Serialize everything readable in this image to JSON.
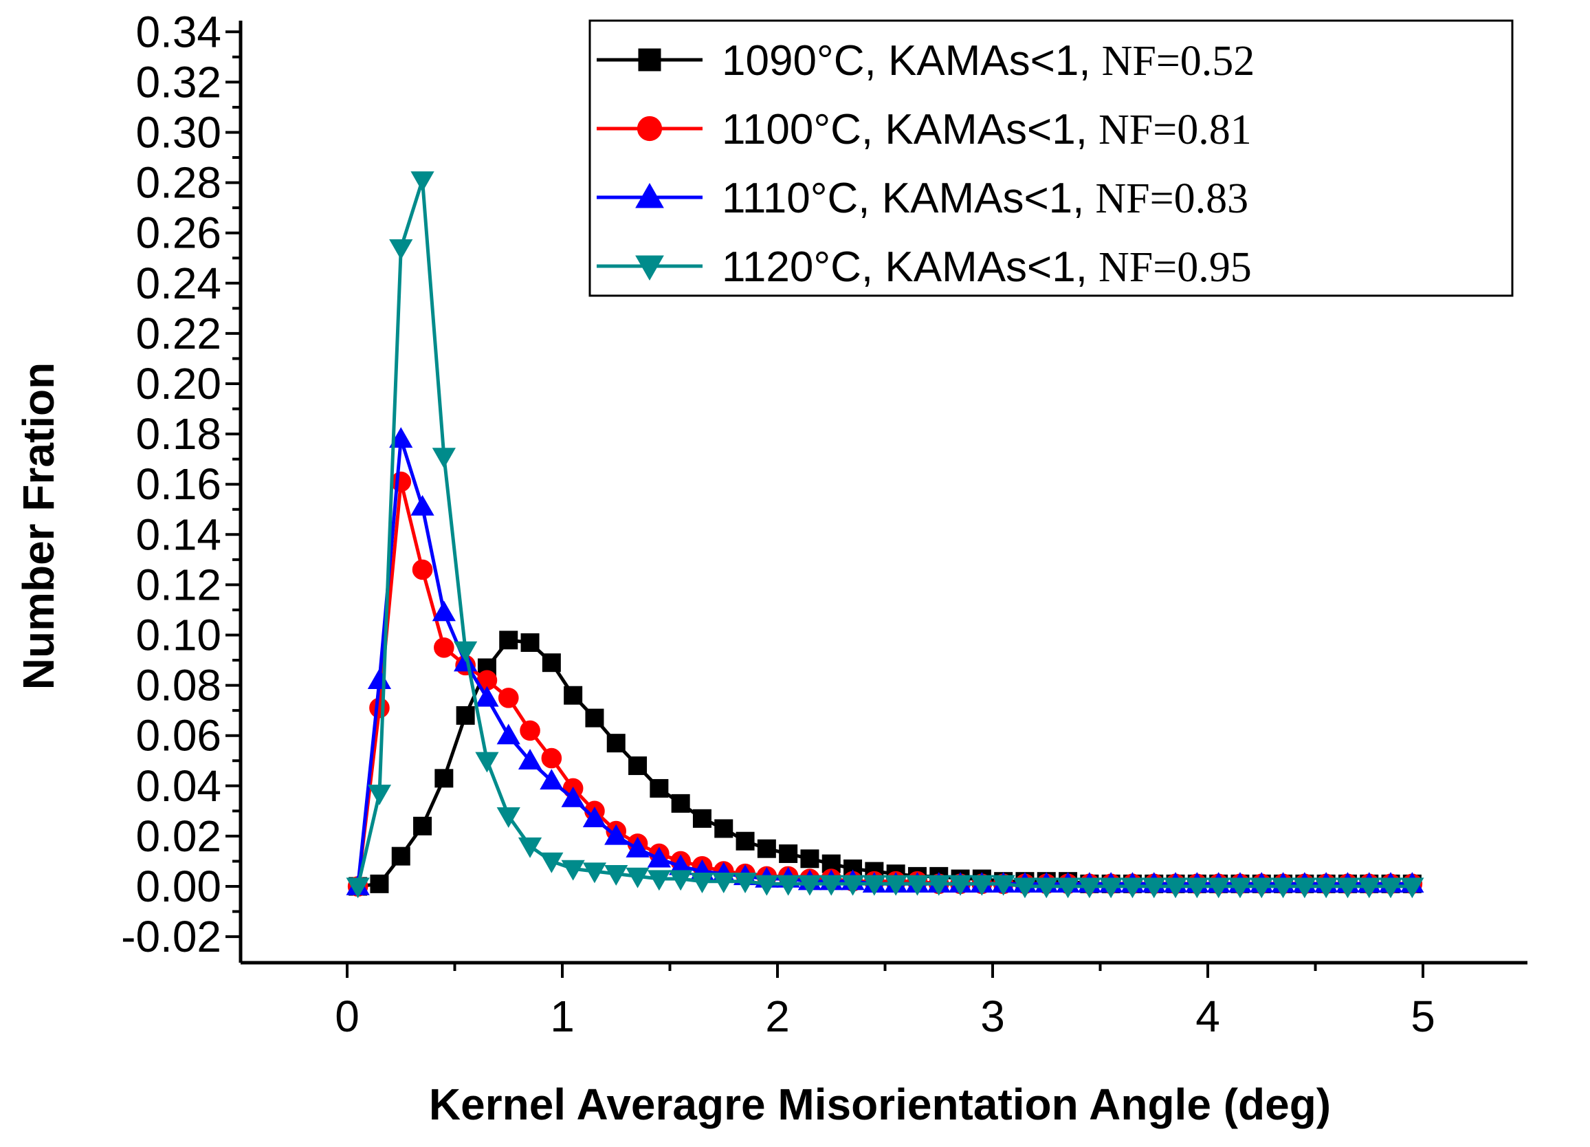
{
  "chart_data": {
    "type": "line",
    "xlabel": "Kernel Averagre Misorientation Angle (deg)",
    "ylabel": "Number Fration",
    "xlim": [
      -0.5,
      5.5
    ],
    "ylim": [
      -0.03,
      0.35
    ],
    "x_ticks": [
      0,
      1,
      2,
      3,
      4,
      5
    ],
    "x_tick_labels": [
      "0",
      "1",
      "2",
      "3",
      "4",
      "5"
    ],
    "y_ticks": [
      -0.02,
      0.0,
      0.02,
      0.04,
      0.06,
      0.08,
      0.1,
      0.12,
      0.14,
      0.16,
      0.18,
      0.2,
      0.22,
      0.24,
      0.26,
      0.28,
      0.3,
      0.32,
      0.34
    ],
    "y_tick_labels": [
      "-0.02",
      "0.00",
      "0.02",
      "0.04",
      "0.06",
      "0.08",
      "0.10",
      "0.12",
      "0.14",
      "0.16",
      "0.18",
      "0.20",
      "0.22",
      "0.24",
      "0.26",
      "0.28",
      "0.30",
      "0.32",
      "0.34"
    ],
    "grid": false,
    "legend_position": "top-right",
    "x": [
      0.05,
      0.15,
      0.25,
      0.35,
      0.45,
      0.55,
      0.65,
      0.75,
      0.85,
      0.95,
      1.05,
      1.15,
      1.25,
      1.35,
      1.45,
      1.55,
      1.65,
      1.75,
      1.85,
      1.95,
      2.05,
      2.15,
      2.25,
      2.35,
      2.45,
      2.55,
      2.65,
      2.75,
      2.85,
      2.95,
      3.05,
      3.15,
      3.25,
      3.35,
      3.45,
      3.55,
      3.65,
      3.75,
      3.85,
      3.95,
      4.05,
      4.15,
      4.25,
      4.35,
      4.45,
      4.55,
      4.65,
      4.75,
      4.85,
      4.95
    ],
    "series": [
      {
        "name_main": "1090°C, KAMAs<1,",
        "name_nf": "NF=0.52",
        "color": "#000000",
        "marker": "square",
        "values": [
          0.0,
          0.001,
          0.012,
          0.024,
          0.043,
          0.068,
          0.087,
          0.098,
          0.097,
          0.089,
          0.076,
          0.067,
          0.057,
          0.048,
          0.039,
          0.033,
          0.027,
          0.023,
          0.018,
          0.015,
          0.013,
          0.011,
          0.009,
          0.007,
          0.006,
          0.005,
          0.004,
          0.004,
          0.003,
          0.003,
          0.002,
          0.002,
          0.002,
          0.002,
          0.001,
          0.001,
          0.001,
          0.001,
          0.001,
          0.001,
          0.001,
          0.001,
          0.001,
          0.001,
          0.001,
          0.001,
          0.001,
          0.001,
          0.001,
          0.001
        ]
      },
      {
        "name_main": "1100°C, KAMAs<1,",
        "name_nf": "NF=0.81",
        "color": "#ff0000",
        "marker": "circle",
        "values": [
          0.0,
          0.071,
          0.161,
          0.126,
          0.095,
          0.088,
          0.082,
          0.075,
          0.062,
          0.051,
          0.039,
          0.03,
          0.022,
          0.017,
          0.013,
          0.01,
          0.008,
          0.006,
          0.005,
          0.004,
          0.004,
          0.003,
          0.003,
          0.002,
          0.002,
          0.002,
          0.002,
          0.001,
          0.001,
          0.001,
          0.001,
          0.001,
          0.001,
          0.001,
          0.001,
          0.001,
          0.001,
          0.001,
          0.001,
          0.001,
          0.001,
          0.001,
          0.001,
          0.001,
          0.001,
          0.001,
          0.001,
          0.001,
          0.001,
          0.001
        ]
      },
      {
        "name_main": "1110°C, KAMAs<1,",
        "name_nf": "NF=0.83",
        "color": "#0000ff",
        "marker": "triangle-up",
        "values": [
          0.0,
          0.082,
          0.178,
          0.151,
          0.109,
          0.089,
          0.075,
          0.06,
          0.05,
          0.042,
          0.035,
          0.027,
          0.02,
          0.015,
          0.011,
          0.008,
          0.006,
          0.005,
          0.004,
          0.003,
          0.003,
          0.002,
          0.002,
          0.002,
          0.001,
          0.001,
          0.001,
          0.001,
          0.001,
          0.001,
          0.001,
          0.001,
          0.001,
          0.001,
          0.001,
          0.001,
          0.001,
          0.001,
          0.001,
          0.001,
          0.001,
          0.001,
          0.001,
          0.001,
          0.001,
          0.001,
          0.001,
          0.001,
          0.001,
          0.001
        ]
      },
      {
        "name_main": "1120°C, KAMAs<1,",
        "name_nf": "NF=0.95",
        "color": "#008b8b",
        "marker": "triangle-down",
        "values": [
          0.0,
          0.037,
          0.254,
          0.281,
          0.171,
          0.094,
          0.05,
          0.028,
          0.016,
          0.01,
          0.007,
          0.006,
          0.005,
          0.004,
          0.003,
          0.003,
          0.002,
          0.002,
          0.002,
          0.001,
          0.001,
          0.001,
          0.001,
          0.001,
          0.001,
          0.001,
          0.001,
          0.001,
          0.001,
          0.001,
          0.001,
          0.0,
          0.0,
          0.0,
          0.0,
          0.0,
          0.0,
          0.0,
          0.0,
          0.0,
          0.0,
          0.0,
          0.0,
          0.0,
          0.0,
          0.0,
          0.0,
          0.0,
          0.0,
          0.0
        ]
      }
    ]
  }
}
